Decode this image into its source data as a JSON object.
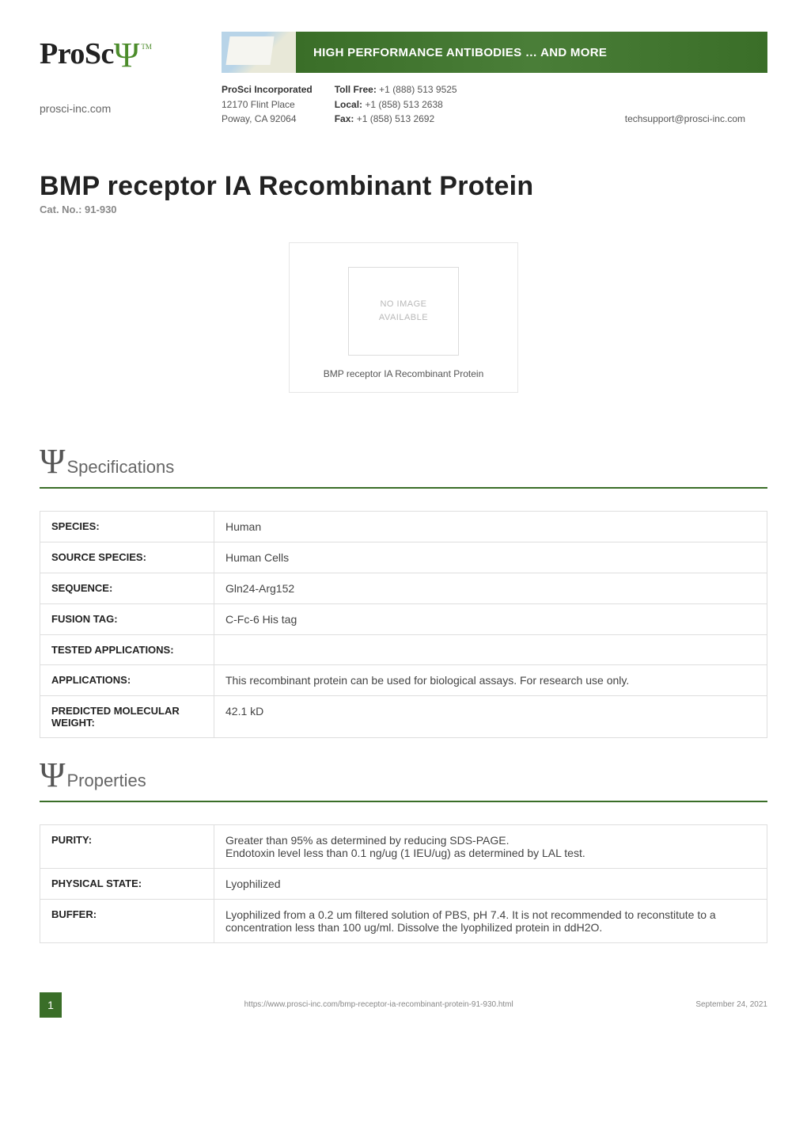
{
  "header": {
    "logo_text": "ProSc",
    "logo_psi": "Ψ",
    "logo_tm": "TM",
    "site_url": "prosci-inc.com",
    "banner_text": "HIGH PERFORMANCE ANTIBODIES … AND MORE",
    "company": {
      "name": "ProSci Incorporated",
      "addr1": "12170 Flint Place",
      "addr2": "Poway, CA 92064"
    },
    "phones": {
      "tollfree_label": "Toll Free:",
      "tollfree": "+1 (888) 513 9525",
      "local_label": "Local:",
      "local": "+1 (858) 513 2638",
      "fax_label": "Fax:",
      "fax": "+1 (858) 513 2692"
    },
    "support_email": "techsupport@prosci-inc.com"
  },
  "product": {
    "title": "BMP receptor IA Recombinant Protein",
    "cat_no_label": "Cat. No.: 91-930"
  },
  "image_card": {
    "placeholder_line1": "NO IMAGE",
    "placeholder_line2": "AVAILABLE",
    "caption": "BMP receptor IA Recombinant Protein"
  },
  "sections": {
    "specs": {
      "heading": "Specifications",
      "rows": [
        {
          "key": "SPECIES:",
          "val": "Human"
        },
        {
          "key": "SOURCE SPECIES:",
          "val": "Human Cells"
        },
        {
          "key": "SEQUENCE:",
          "val": "Gln24-Arg152"
        },
        {
          "key": "FUSION TAG:",
          "val": "C-Fc-6 His tag"
        },
        {
          "key": "TESTED APPLICATIONS:",
          "val": ""
        },
        {
          "key": "APPLICATIONS:",
          "val": "This recombinant protein can be used for biological assays. For research use only."
        },
        {
          "key": "PREDICTED MOLECULAR WEIGHT:",
          "val": "42.1 kD"
        }
      ]
    },
    "props": {
      "heading": "Properties",
      "rows": [
        {
          "key": "PURITY:",
          "val": "Greater than 95% as determined by reducing SDS-PAGE.\nEndotoxin level less than 0.1 ng/ug (1 IEU/ug) as determined by LAL test."
        },
        {
          "key": "PHYSICAL STATE:",
          "val": "Lyophilized"
        },
        {
          "key": "BUFFER:",
          "val": "Lyophilized from a 0.2 um filtered solution of PBS, pH 7.4. It is not recommended to reconstitute to a concentration less than 100 ug/ml. Dissolve the lyophilized protein in ddH2O."
        }
      ]
    }
  },
  "footer": {
    "page": "1",
    "url": "https://www.prosci-inc.com/bmp-receptor-ia-recombinant-protein-91-930.html",
    "date": "September 24, 2021"
  },
  "colors": {
    "brand_green": "#3a6e28",
    "psi_green": "#4c8c2b",
    "border_gray": "#dedede",
    "text_dark": "#222",
    "text_muted": "#888"
  }
}
